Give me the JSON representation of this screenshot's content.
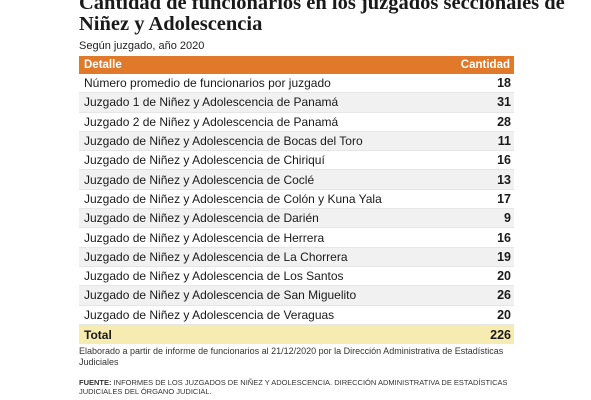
{
  "title": "Cantidad de funcionarios en los juzgados seccionales de Niñez y Adolescencia",
  "subtitle": "Según juzgado, año 2020",
  "chart_data": {
    "type": "table",
    "columns": [
      "Detalle",
      "Cantidad"
    ],
    "rows": [
      {
        "label": "Número promedio de funcionarios por juzgado",
        "value": "18"
      },
      {
        "label": "Juzgado 1 de Niñez y Adolescencia de Panamá",
        "value": "31"
      },
      {
        "label": "Juzgado 2 de Niñez y Adolescencia de Panamá",
        "value": "28"
      },
      {
        "label": "Juzgado de Niñez y Adolescencia de Bocas del Toro",
        "value": "11"
      },
      {
        "label": "Juzgado de Niñez y Adolescencia de Chiriquí",
        "value": "16"
      },
      {
        "label": "Juzgado de Niñez y Adolescencia de Coclé",
        "value": "13"
      },
      {
        "label": "Juzgado de Niñez y Adolescencia de Colón y Kuna Yala",
        "value": "17"
      },
      {
        "label": "Juzgado de Niñez y Adolescencia de Darién",
        "value": "9"
      },
      {
        "label": "Juzgado de Niñez y Adolescencia de Herrera",
        "value": "16"
      },
      {
        "label": "Juzgado de Niñez y Adolescencia de La Chorrera",
        "value": "19"
      },
      {
        "label": "Juzgado de Niñez y Adolescencia de Los Santos",
        "value": "20"
      },
      {
        "label": "Juzgado de Niñez y Adolescencia de San Miguelito",
        "value": "26"
      },
      {
        "label": "Juzgado de Niñez y Adolescencia de Veraguas",
        "value": "20"
      }
    ],
    "total": {
      "label": "Total",
      "value": "226"
    }
  },
  "note": "Elaborado a partir de informe de funcionarios al 21/12/2020 por la Dirección Administrativa de Estadísticas Judiciales",
  "source_label": "FUENTE:",
  "source_text": "INFORMES DE LOS JUZGADOS DE NIÑEZ Y ADOLESCENCIA. DIRECCIÓN ADMINISTRATIVA DE ESTADÍSTICAS JUDICIALES DEL ÓRGANO JUDICIAL.",
  "colors": {
    "header": "#e07a2a",
    "total_row": "#f6ecb2",
    "alt_row": "#f1f1f1"
  }
}
